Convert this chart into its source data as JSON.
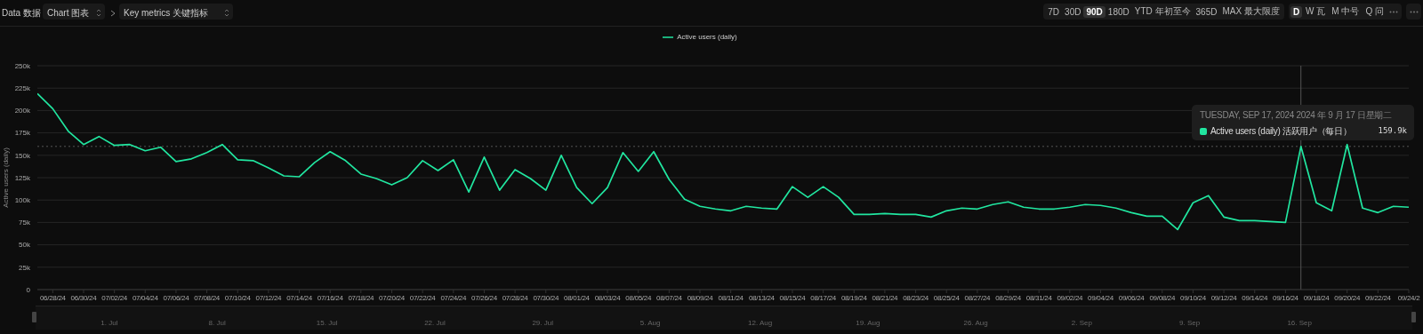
{
  "chart_data": {
    "type": "line",
    "ylabel": "Active users (daily)",
    "x": [
      "2024-06-27",
      "2024-06-28",
      "2024-06-29",
      "2024-06-30",
      "2024-07-01",
      "2024-07-02",
      "2024-07-03",
      "2024-07-04",
      "2024-07-05",
      "2024-07-06",
      "2024-07-07",
      "2024-07-08",
      "2024-07-09",
      "2024-07-10",
      "2024-07-11",
      "2024-07-12",
      "2024-07-13",
      "2024-07-14",
      "2024-07-15",
      "2024-07-16",
      "2024-07-17",
      "2024-07-18",
      "2024-07-19",
      "2024-07-20",
      "2024-07-21",
      "2024-07-22",
      "2024-07-23",
      "2024-07-24",
      "2024-07-25",
      "2024-07-26",
      "2024-07-27",
      "2024-07-28",
      "2024-07-29",
      "2024-07-30",
      "2024-07-31",
      "2024-08-01",
      "2024-08-02",
      "2024-08-03",
      "2024-08-04",
      "2024-08-05",
      "2024-08-06",
      "2024-08-07",
      "2024-08-08",
      "2024-08-09",
      "2024-08-10",
      "2024-08-11",
      "2024-08-12",
      "2024-08-13",
      "2024-08-14",
      "2024-08-15",
      "2024-08-16",
      "2024-08-17",
      "2024-08-18",
      "2024-08-19",
      "2024-08-20",
      "2024-08-21",
      "2024-08-22",
      "2024-08-23",
      "2024-08-24",
      "2024-08-25",
      "2024-08-26",
      "2024-08-27",
      "2024-08-28",
      "2024-08-29",
      "2024-08-30",
      "2024-08-31",
      "2024-09-01",
      "2024-09-02",
      "2024-09-03",
      "2024-09-04",
      "2024-09-05",
      "2024-09-06",
      "2024-09-07",
      "2024-09-08",
      "2024-09-09",
      "2024-09-10",
      "2024-09-11",
      "2024-09-12",
      "2024-09-13",
      "2024-09-14",
      "2024-09-15",
      "2024-09-16",
      "2024-09-17",
      "2024-09-18",
      "2024-09-19",
      "2024-09-20",
      "2024-09-21",
      "2024-09-22",
      "2024-09-23",
      "2024-09-24"
    ],
    "series": [
      {
        "name": "Active users (daily)",
        "color": "#21e6a0",
        "values": [
          219000,
          202000,
          177000,
          162000,
          171000,
          161000,
          162000,
          155000,
          159000,
          143000,
          146000,
          153000,
          162000,
          145000,
          144000,
          136000,
          127000,
          126000,
          142000,
          154000,
          144000,
          129000,
          124000,
          117000,
          125000,
          144000,
          133000,
          145000,
          109000,
          148000,
          111000,
          134000,
          124000,
          111000,
          150000,
          114000,
          96000,
          114000,
          153000,
          132000,
          154000,
          123000,
          101000,
          93000,
          90000,
          88000,
          93000,
          91000,
          90000,
          115000,
          103000,
          115000,
          103000,
          84000,
          84000,
          85000,
          84000,
          84000,
          81000,
          88000,
          91000,
          90000,
          95000,
          98000,
          92000,
          90000,
          90000,
          92000,
          95000,
          94000,
          91000,
          86000,
          82000,
          82000,
          67000,
          97000,
          105000,
          81000,
          77000,
          77000,
          76000,
          75000,
          159900,
          97000,
          88000,
          162000,
          91000,
          86000,
          93000,
          92000
        ]
      }
    ],
    "xlim": [
      "2024-06-27",
      "2024-09-24"
    ],
    "xticks": [
      {
        "value": "2024-06-28",
        "label": "06/28/24"
      },
      {
        "value": "2024-06-30",
        "label": "06/30/24"
      },
      {
        "value": "2024-07-02",
        "label": "07/02/24"
      },
      {
        "value": "2024-07-04",
        "label": "07/04/24"
      },
      {
        "value": "2024-07-06",
        "label": "07/06/24"
      },
      {
        "value": "2024-07-08",
        "label": "07/08/24"
      },
      {
        "value": "2024-07-10",
        "label": "07/10/24"
      },
      {
        "value": "2024-07-12",
        "label": "07/12/24"
      },
      {
        "value": "2024-07-14",
        "label": "07/14/24"
      },
      {
        "value": "2024-07-16",
        "label": "07/16/24"
      },
      {
        "value": "2024-07-18",
        "label": "07/18/24"
      },
      {
        "value": "2024-07-20",
        "label": "07/20/24"
      },
      {
        "value": "2024-07-22",
        "label": "07/22/24"
      },
      {
        "value": "2024-07-24",
        "label": "07/24/24"
      },
      {
        "value": "2024-07-26",
        "label": "07/26/24"
      },
      {
        "value": "2024-07-28",
        "label": "07/28/24"
      },
      {
        "value": "2024-07-30",
        "label": "07/30/24"
      },
      {
        "value": "2024-08-01",
        "label": "08/01/24"
      },
      {
        "value": "2024-08-03",
        "label": "08/03/24"
      },
      {
        "value": "2024-08-05",
        "label": "08/05/24"
      },
      {
        "value": "2024-08-07",
        "label": "08/07/24"
      },
      {
        "value": "2024-08-09",
        "label": "08/09/24"
      },
      {
        "value": "2024-08-11",
        "label": "08/11/24"
      },
      {
        "value": "2024-08-13",
        "label": "08/13/24"
      },
      {
        "value": "2024-08-15",
        "label": "08/15/24"
      },
      {
        "value": "2024-08-17",
        "label": "08/17/24"
      },
      {
        "value": "2024-08-19",
        "label": "08/19/24"
      },
      {
        "value": "2024-08-21",
        "label": "08/21/24"
      },
      {
        "value": "2024-08-23",
        "label": "08/23/24"
      },
      {
        "value": "2024-08-25",
        "label": "08/25/24"
      },
      {
        "value": "2024-08-27",
        "label": "08/27/24"
      },
      {
        "value": "2024-08-29",
        "label": "08/29/24"
      },
      {
        "value": "2024-08-31",
        "label": "08/31/24"
      },
      {
        "value": "2024-09-02",
        "label": "09/02/24"
      },
      {
        "value": "2024-09-04",
        "label": "09/04/24"
      },
      {
        "value": "2024-09-06",
        "label": "09/06/24"
      },
      {
        "value": "2024-09-08",
        "label": "09/08/24"
      },
      {
        "value": "2024-09-10",
        "label": "09/10/24"
      },
      {
        "value": "2024-09-12",
        "label": "09/12/24"
      },
      {
        "value": "2024-09-14",
        "label": "09/14/24"
      },
      {
        "value": "2024-09-16",
        "label": "09/16/24"
      },
      {
        "value": "2024-09-18",
        "label": "09/18/24"
      },
      {
        "value": "2024-09-20",
        "label": "09/20/24"
      },
      {
        "value": "2024-09-22",
        "label": "09/22/24"
      },
      {
        "value": "2024-09-24",
        "label": "09/24/2"
      }
    ],
    "ylim": [
      0,
      250000
    ],
    "yticks": [
      0,
      {
        "value": 25000,
        "label": "25k"
      },
      {
        "value": 50000,
        "label": "50k"
      },
      {
        "value": 75000,
        "label": "75k"
      },
      {
        "value": 100000,
        "label": "100k"
      },
      {
        "value": 125000,
        "label": "125k"
      },
      {
        "value": 150000,
        "label": "150k"
      },
      {
        "value": 175000,
        "label": "175k"
      },
      {
        "value": 200000,
        "label": "200k"
      },
      {
        "value": 225000,
        "label": "225k"
      },
      {
        "value": 250000,
        "label": "250k"
      }
    ],
    "grid": "y",
    "legend": "top",
    "ref_lines": [
      {
        "axis": "x",
        "value": "2024-09-17",
        "color": "#555555"
      },
      {
        "axis": "y",
        "value": 159900,
        "color": "#555555",
        "line_style": "dotted"
      }
    ],
    "annotations": [
      "Data 数据",
      "Chart 图表",
      "Key metrics 关键指标",
      "7D",
      "30D",
      "90D",
      "180D",
      "YTD 年初至今",
      "365D",
      "MAX 最大限度",
      "D",
      "W 瓦",
      "M 中号",
      "Q 问",
      "1. Jul",
      "8. Jul",
      "15. Jul",
      "22. Jul",
      "29. Jul",
      "5. Aug",
      "12. Aug",
      "19. Aug",
      "26. Aug",
      "2. Sep",
      "9. Sep",
      "16. Sep",
      "TUESDAY, SEP 17, 2024 2024 年 9 月 17 日星期二",
      "Active users (daily) 活跃用户（每日）",
      "159.9k"
    ]
  }
}
